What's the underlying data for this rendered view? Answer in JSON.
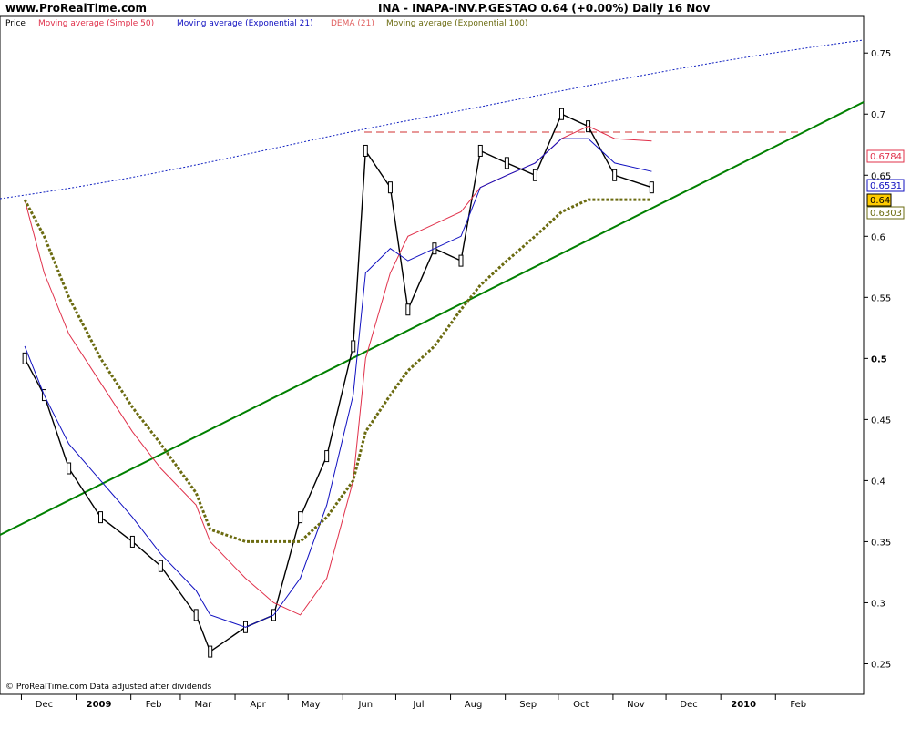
{
  "header": {
    "site": "www.ProRealTime.com",
    "quote": "INA - INAPA-INV.P.GESTAO    0.64 (+0.00%)    Daily  16 Nov"
  },
  "legend": {
    "price": "Price",
    "sma50": "Moving average (Simple 50)",
    "ema21": "Moving average (Exponential 21)",
    "dema21": "DEMA (21)",
    "ema100": "Moving average (Exponential 100)"
  },
  "footer": {
    "credit": "© ProRealTime.com  Data adjusted after dividends"
  },
  "colors": {
    "sma50": "#e0304a",
    "ema21": "#1010c0",
    "dema21": "#e06060",
    "ema100": "#6b6b10",
    "trendline": "#008000",
    "resistance": "#d03030",
    "channel": "#1020c0"
  },
  "chart_data": {
    "type": "line",
    "title": "INA - INAPA-INV.P.GESTAO",
    "ylim": [
      0.225,
      0.78
    ],
    "yticks": [
      "0.25",
      "0.3",
      "0.35",
      "0.4",
      "0.45",
      "0.5",
      "0.55",
      "0.6",
      "0.65",
      "0.7",
      "0.75"
    ],
    "xticks": [
      "Dec",
      "2009",
      "Feb",
      "Mar",
      "Apr",
      "May",
      "Jun",
      "Jul",
      "Aug",
      "Sep",
      "Oct",
      "Nov",
      "Dec",
      "2010",
      "Feb"
    ],
    "series": [
      {
        "name": "Price",
        "x": [
          "2008-11-20",
          "2008-12-01",
          "2008-12-15",
          "2009-01-02",
          "2009-01-20",
          "2009-02-05",
          "2009-02-25",
          "2009-03-05",
          "2009-03-25",
          "2009-04-10",
          "2009-04-25",
          "2009-05-10",
          "2009-05-25",
          "2009-06-01",
          "2009-06-15",
          "2009-06-25",
          "2009-07-10",
          "2009-07-25",
          "2009-08-05",
          "2009-08-20",
          "2009-09-05",
          "2009-09-20",
          "2009-10-05",
          "2009-10-20",
          "2009-11-10"
        ],
        "values": [
          0.5,
          0.47,
          0.41,
          0.37,
          0.35,
          0.33,
          0.29,
          0.26,
          0.28,
          0.29,
          0.37,
          0.42,
          0.51,
          0.67,
          0.64,
          0.54,
          0.59,
          0.58,
          0.67,
          0.66,
          0.65,
          0.7,
          0.69,
          0.65,
          0.64
        ]
      },
      {
        "name": "Moving average (Simple 50)",
        "values": [
          0.63,
          0.57,
          0.52,
          0.48,
          0.44,
          0.41,
          0.38,
          0.35,
          0.32,
          0.3,
          0.29,
          0.32,
          0.4,
          0.5,
          0.57,
          0.6,
          0.61,
          0.62,
          0.64,
          0.65,
          0.66,
          0.68,
          0.69,
          0.68,
          0.678
        ]
      },
      {
        "name": "Moving average (Exponential 21)",
        "values": [
          0.51,
          0.47,
          0.43,
          0.4,
          0.37,
          0.34,
          0.31,
          0.29,
          0.28,
          0.29,
          0.32,
          0.38,
          0.47,
          0.57,
          0.59,
          0.58,
          0.59,
          0.6,
          0.64,
          0.65,
          0.66,
          0.68,
          0.68,
          0.66,
          0.653
        ]
      },
      {
        "name": "Moving average (Exponential 100)",
        "values": [
          0.63,
          0.6,
          0.55,
          0.5,
          0.46,
          0.43,
          0.39,
          0.36,
          0.35,
          0.35,
          0.35,
          0.37,
          0.4,
          0.44,
          0.47,
          0.49,
          0.51,
          0.54,
          0.56,
          0.58,
          0.6,
          0.62,
          0.63,
          0.63,
          0.63
        ]
      }
    ],
    "value_tags": [
      "0.6784",
      "0.6531",
      "0.64",
      "0.6303"
    ]
  }
}
